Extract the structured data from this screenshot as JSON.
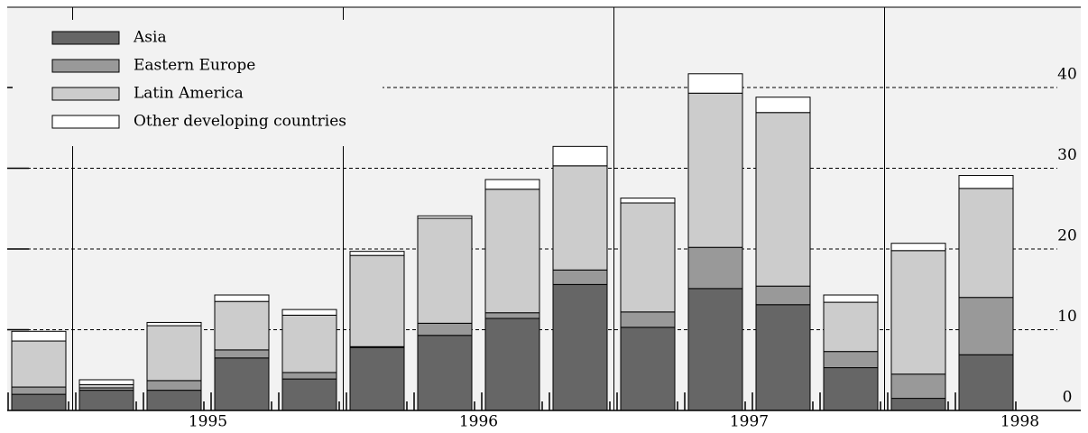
{
  "chart_data": {
    "type": "stacked-bar",
    "categories": [
      null,
      null,
      null,
      null,
      null,
      null,
      null,
      null,
      null,
      null,
      null,
      null,
      null,
      null,
      null
    ],
    "year_labels": [
      "1995",
      "1996",
      "1997",
      "1998"
    ],
    "series": [
      {
        "name": "Asia",
        "color": "#666666",
        "values": [
          2.0,
          2.5,
          2.5,
          6.5,
          3.9,
          7.8,
          9.3,
          11.4,
          15.6,
          10.3,
          15.1,
          13.1,
          5.3,
          1.5,
          6.9
        ]
      },
      {
        "name": "Eastern Europe",
        "color": "#999999",
        "values": [
          0.9,
          0.3,
          1.2,
          1.0,
          0.8,
          0.1,
          1.5,
          0.7,
          1.8,
          1.9,
          5.1,
          2.3,
          2.0,
          3.0,
          7.1
        ]
      },
      {
        "name": "Latin America",
        "color": "#cccccc",
        "values": [
          5.7,
          0.4,
          6.8,
          6.0,
          7.1,
          11.3,
          13.0,
          15.3,
          12.9,
          13.5,
          19.1,
          21.5,
          6.1,
          15.3,
          13.5
        ]
      },
      {
        "name": "Other developing countries",
        "color": "#ffffff",
        "values": [
          1.2,
          0.6,
          0.4,
          0.8,
          0.7,
          0.5,
          0.3,
          1.2,
          2.4,
          0.6,
          2.4,
          1.9,
          0.9,
          0.9,
          1.6
        ]
      }
    ],
    "ylim": [
      0,
      50
    ],
    "yticks": [
      0,
      10,
      20,
      30,
      40
    ],
    "grid": true
  }
}
